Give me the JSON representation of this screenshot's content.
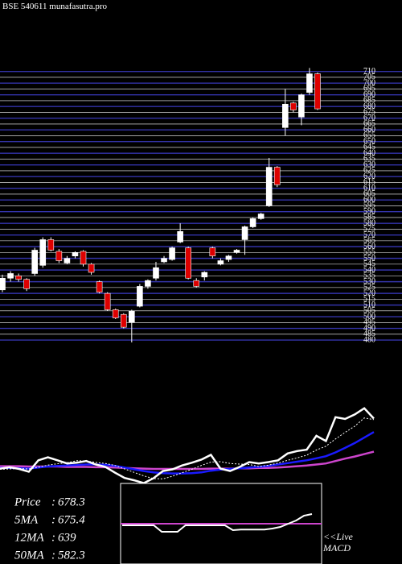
{
  "chart_data": {
    "type": "candlestick",
    "title": "BSE 540611 munafasutra.pro",
    "ylim": [
      478,
      716
    ],
    "yticks": [
      480,
      485,
      490,
      495,
      500,
      505,
      510,
      515,
      520,
      525,
      530,
      535,
      540,
      545,
      550,
      555,
      560,
      565,
      570,
      575,
      580,
      585,
      590,
      595,
      600,
      605,
      610,
      615,
      620,
      625,
      630,
      635,
      640,
      645,
      650,
      655,
      660,
      665,
      670,
      675,
      680,
      685,
      690,
      695,
      700,
      705,
      710
    ],
    "grid": true,
    "up_color": "#ffffff",
    "down_color": "#dd0000",
    "open": [
      523,
      533,
      535,
      532,
      537,
      544,
      566,
      556,
      546,
      552,
      556,
      545,
      530,
      520,
      506,
      502,
      495,
      509,
      526,
      533,
      547,
      549,
      564,
      559,
      531,
      534,
      559,
      545,
      549,
      555,
      566,
      577,
      584,
      595,
      628,
      662,
      683,
      671,
      692,
      708
    ],
    "high": [
      536,
      539,
      537,
      533,
      559,
      568,
      568,
      558,
      552,
      556,
      557,
      546,
      531,
      521,
      507,
      503,
      506,
      528,
      532,
      547,
      552,
      560,
      580,
      560,
      533,
      539,
      560,
      550,
      553,
      558,
      578,
      585,
      589,
      636,
      629,
      695,
      684,
      691,
      713,
      709
    ],
    "low": [
      521,
      530,
      530,
      522,
      535,
      542,
      556,
      546,
      545,
      550,
      543,
      536,
      520,
      505,
      498,
      490,
      478,
      508,
      524,
      531,
      546,
      548,
      563,
      532,
      525,
      531,
      550,
      544,
      547,
      554,
      553,
      576,
      583,
      594,
      611,
      655,
      675,
      664,
      690,
      677
    ],
    "close": [
      533,
      537,
      532,
      524,
      557,
      566,
      557,
      548,
      550,
      555,
      545,
      538,
      521,
      506,
      499,
      491,
      505,
      526,
      531,
      542,
      550,
      559,
      573,
      533,
      526,
      538,
      552,
      548,
      552,
      557,
      577,
      584,
      588,
      628,
      613,
      682,
      677,
      690,
      708,
      678
    ],
    "lower_ylim": [
      490,
      712
    ],
    "series": [
      {
        "name": "5MA",
        "color": "#ffffff",
        "dashed": true,
        "values": [
          531,
          532,
          533,
          532,
          537,
          543,
          547,
          550,
          556,
          555,
          551,
          548,
          542,
          532,
          522,
          512,
          504,
          503,
          511,
          521,
          531,
          542,
          552,
          553,
          548,
          546,
          545,
          539,
          543,
          549,
          557,
          564,
          572,
          587,
          598,
          619,
          638,
          656,
          680,
          675
        ]
      },
      {
        "name": "12MA",
        "color": "#1a1aff",
        "values": [
          535,
          535,
          534,
          533,
          536,
          539,
          541,
          542,
          543,
          545,
          545,
          544,
          541,
          536,
          531,
          526,
          522,
          520,
          519,
          519,
          520,
          522,
          527,
          530,
          532,
          534,
          536,
          538,
          541,
          545,
          549,
          553,
          557,
          563,
          569,
          580,
          593,
          607,
          623,
          639
        ]
      },
      {
        "name": "50MA",
        "color": "#cc44cc",
        "values": [
          540,
          540,
          540,
          539,
          539,
          539,
          539,
          538,
          538,
          538,
          537,
          537,
          536,
          535,
          534,
          533,
          532,
          532,
          532,
          532,
          532,
          532,
          533,
          533,
          533,
          534,
          534,
          535,
          535,
          536,
          538,
          540,
          542,
          545,
          548,
          555,
          562,
          568,
          575,
          582
        ]
      }
    ],
    "macd": {
      "name": "MACD",
      "ylim": [
        -10,
        10
      ],
      "values": [
        -0.5,
        -0.5,
        -0.5,
        -0.5,
        -0.5,
        -2.5,
        -2.5,
        -2.5,
        -0.5,
        -0.5,
        -0.5,
        -0.5,
        -0.5,
        -0.5,
        -2,
        -1.8,
        -1.8,
        -1.8,
        -1.8,
        -1.5,
        -1,
        0,
        1,
        2.5,
        3
      ]
    },
    "info": [
      {
        "label": "Price",
        "value": 678.3
      },
      {
        "label": "5MA",
        "value": 675.4
      },
      {
        "label": "12MA",
        "value": 639
      },
      {
        "label": "50MA",
        "value": 582.3
      }
    ],
    "live_label": "<<Live"
  }
}
